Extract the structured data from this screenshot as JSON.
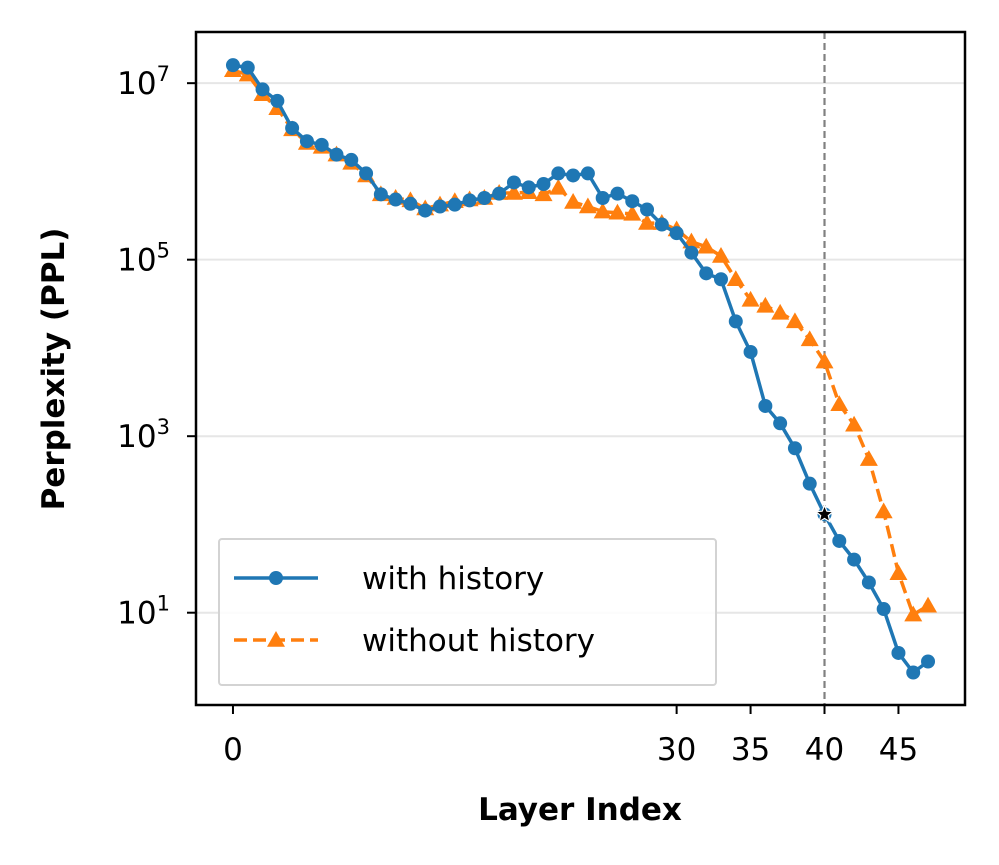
{
  "chart_data": {
    "type": "line",
    "xlabel": "Layer Index",
    "ylabel": "Perplexity (PPL)",
    "x_ticks": [
      0,
      30,
      35,
      40,
      45
    ],
    "y_ticks": [
      {
        "value": 10,
        "base": "10",
        "exp": "1"
      },
      {
        "value": 1000,
        "base": "10",
        "exp": "3"
      },
      {
        "value": 100000,
        "base": "10",
        "exp": "5"
      },
      {
        "value": 10000000,
        "base": "10",
        "exp": "7"
      }
    ],
    "xlim": [
      -2.5,
      49.5
    ],
    "ylim": [
      0.9,
      38000000
    ],
    "yscale": "log",
    "grid": "horizontal",
    "legend_position": "lower-left",
    "vline": {
      "x": 40,
      "style": "dashed",
      "color": "#808080"
    },
    "marker_point": {
      "x": 40,
      "y": 130,
      "symbol": "star"
    },
    "series": [
      {
        "name": "with history",
        "color": "#1f77b4",
        "marker": "circle",
        "linestyle": "solid",
        "x": [
          0,
          1,
          2,
          3,
          4,
          5,
          6,
          7,
          8,
          9,
          10,
          11,
          12,
          13,
          14,
          15,
          16,
          17,
          18,
          19,
          20,
          21,
          22,
          23,
          24,
          25,
          26,
          27,
          28,
          29,
          30,
          31,
          32,
          33,
          34,
          35,
          36,
          37,
          38,
          39,
          40,
          41,
          42,
          43,
          44,
          45,
          46,
          47
        ],
        "y": [
          16000000,
          15000000,
          8500000,
          6300000,
          3100000,
          2200000,
          2000000,
          1550000,
          1350000,
          950000,
          550000,
          480000,
          430000,
          360000,
          400000,
          420000,
          470000,
          500000,
          560000,
          750000,
          660000,
          720000,
          950000,
          900000,
          950000,
          500000,
          560000,
          460000,
          370000,
          250000,
          200000,
          120000,
          70000,
          60000,
          20000,
          9000,
          2200,
          1400,
          730,
          290,
          130,
          65,
          40,
          22,
          11,
          3.5,
          2.1,
          2.8
        ]
      },
      {
        "name": "without history",
        "color": "#ff7f0e",
        "marker": "triangle",
        "linestyle": "dashed",
        "x": [
          0,
          1,
          2,
          3,
          4,
          5,
          6,
          7,
          8,
          9,
          10,
          11,
          12,
          13,
          14,
          15,
          16,
          17,
          18,
          19,
          20,
          21,
          22,
          23,
          24,
          25,
          26,
          27,
          28,
          29,
          30,
          31,
          32,
          33,
          34,
          35,
          36,
          37,
          38,
          39,
          40,
          41,
          42,
          43,
          44,
          45,
          46,
          47
        ],
        "y": [
          14000000,
          12500000,
          7500000,
          5200000,
          3000000,
          2100000,
          1900000,
          1550000,
          1250000,
          900000,
          550000,
          500000,
          470000,
          380000,
          420000,
          460000,
          480000,
          500000,
          570000,
          570000,
          580000,
          550000,
          650000,
          450000,
          400000,
          350000,
          340000,
          330000,
          260000,
          260000,
          220000,
          160000,
          140000,
          110000,
          60000,
          35000,
          30000,
          25000,
          20000,
          12500,
          7000,
          2300,
          1350,
          550,
          140,
          28,
          9.5,
          12
        ]
      }
    ]
  }
}
